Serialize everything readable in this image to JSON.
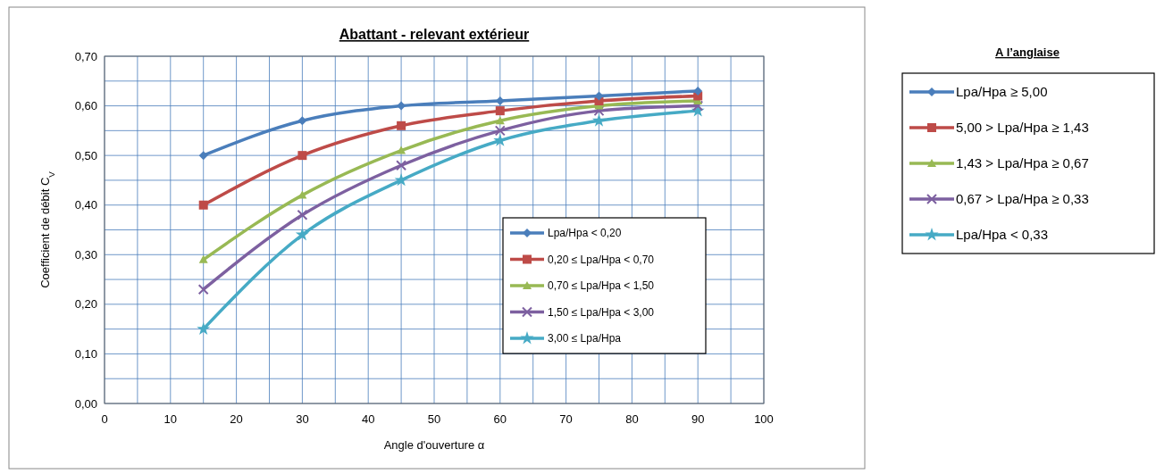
{
  "chart_data": [
    {
      "type": "line",
      "title": "Abattant - relevant extérieur",
      "xlabel": "Angle d'ouverture α",
      "ylabel": "Coefficient  de débit C$_{V}$",
      "x": [
        15,
        30,
        45,
        60,
        75,
        90
      ],
      "series": [
        {
          "name": "Lpa/Hpa < 0,20",
          "color": "#4a7ebb",
          "marker": "diamond",
          "values": [
            0.5,
            0.57,
            0.6,
            0.61,
            0.62,
            0.63
          ]
        },
        {
          "name": "0,20 ≤ Lpa/Hpa < 0,70",
          "color": "#be4b48",
          "marker": "square",
          "values": [
            0.4,
            0.5,
            0.56,
            0.59,
            0.61,
            0.62
          ]
        },
        {
          "name": "0,70 ≤ Lpa/Hpa < 1,50",
          "color": "#98b954",
          "marker": "triangle",
          "values": [
            0.29,
            0.42,
            0.51,
            0.57,
            0.6,
            0.61
          ]
        },
        {
          "name": "1,50 ≤ Lpa/Hpa < 3,00",
          "color": "#7d60a0",
          "marker": "cross",
          "values": [
            0.23,
            0.38,
            0.48,
            0.55,
            0.59,
            0.6
          ]
        },
        {
          "name": "3,00 ≤ Lpa/Hpa",
          "color": "#46aac5",
          "marker": "star",
          "values": [
            0.15,
            0.34,
            0.45,
            0.53,
            0.57,
            0.59
          ]
        }
      ],
      "xlim": [
        0,
        100
      ],
      "xticks": [
        0,
        {
          "value": 5,
          "label": null
        },
        10,
        {
          "value": 15,
          "label": null
        },
        20,
        {
          "value": 25,
          "label": null
        },
        30,
        {
          "value": 35,
          "label": null
        },
        40,
        {
          "value": 45,
          "label": null
        },
        50,
        {
          "value": 55,
          "label": null
        },
        60,
        {
          "value": 65,
          "label": null
        },
        70,
        {
          "value": 75,
          "label": null
        },
        80,
        {
          "value": 85,
          "label": null
        },
        90,
        {
          "value": 95,
          "label": null
        },
        100
      ],
      "ylim": [
        0,
        0.7
      ],
      "yticks": [
        {
          "value": 0,
          "label": "0,00"
        },
        {
          "value": 0.05,
          "label": null
        },
        {
          "value": 0.1,
          "label": "0,10"
        },
        {
          "value": 0.15,
          "label": null
        },
        {
          "value": 0.2,
          "label": "0,20"
        },
        {
          "value": 0.25,
          "label": null
        },
        {
          "value": 0.3,
          "label": "0,30"
        },
        {
          "value": 0.35,
          "label": null
        },
        {
          "value": 0.4,
          "label": "0,40"
        },
        {
          "value": 0.45,
          "label": null
        },
        {
          "value": 0.5,
          "label": "0,50"
        },
        {
          "value": 0.55,
          "label": null
        },
        {
          "value": 0.6,
          "label": "0,60"
        },
        {
          "value": 0.65,
          "label": null
        },
        {
          "value": 0.7,
          "label": "0,70"
        }
      ],
      "grid": true,
      "legend": "bottom right",
      "line_style": "solid"
    },
    {
      "type": "other",
      "title": "A l’anglaise",
      "annotations": [
        "Lpa/Hpa ≥ 5,00",
        "5,00 > Lpa/Hpa ≥ 1,43",
        "1,43 > Lpa/Hpa ≥ 0,67",
        "0,67 > Lpa/Hpa ≥ 0,33",
        "Lpa/Hpa < 0,33"
      ]
    }
  ]
}
